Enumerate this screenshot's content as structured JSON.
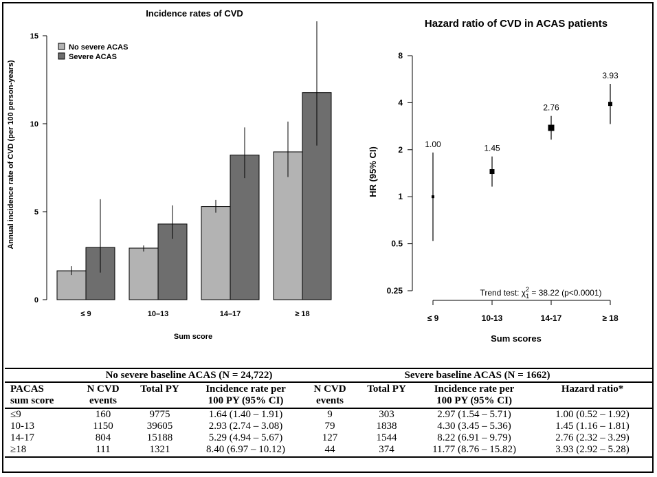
{
  "chart_data": [
    {
      "type": "bar",
      "title": "Incidence rates of CVD",
      "xlabel": "Sum score",
      "ylabel": "Annual incidence rate of CVD (per 100 person-years)",
      "categories": [
        "≤ 9",
        "10–13",
        "14–17",
        "≥ 18"
      ],
      "ylim": [
        0,
        15
      ],
      "yticks": [
        0,
        5,
        10,
        15
      ],
      "legend_position": "top-left",
      "grid": false,
      "series": [
        {
          "name": "No severe ACAS",
          "color": "#b3b3b3",
          "values": [
            1.64,
            2.93,
            5.29,
            8.4
          ],
          "ci_low": [
            1.4,
            2.74,
            4.94,
            6.97
          ],
          "ci_high": [
            1.91,
            3.08,
            5.67,
            10.12
          ]
        },
        {
          "name": "Severe ACAS",
          "color": "#6e6e6e",
          "values": [
            2.97,
            4.3,
            8.22,
            11.77
          ],
          "ci_low": [
            1.54,
            3.45,
            6.91,
            8.76
          ],
          "ci_high": [
            5.71,
            5.36,
            9.79,
            15.82
          ]
        }
      ]
    },
    {
      "type": "scatter",
      "title": "Hazard ratio of CVD in ACAS patients",
      "xlabel": "Sum scores",
      "ylabel": "HR (95% CI)",
      "y_scale": "log",
      "categories": [
        "≤ 9",
        "10-13",
        "14-17",
        "≥ 18"
      ],
      "ylim": [
        0.25,
        8
      ],
      "yticks": [
        0.25,
        0.5,
        1,
        2,
        4,
        8
      ],
      "ytick_labels": [
        "0.25",
        "0.5",
        "1",
        "2",
        "4",
        "8"
      ],
      "values": [
        1.0,
        1.45,
        2.76,
        3.93
      ],
      "value_labels": [
        "1.00",
        "1.45",
        "2.76",
        "3.93"
      ],
      "ci_low": [
        0.52,
        1.16,
        2.32,
        2.92
      ],
      "ci_high": [
        1.92,
        1.81,
        3.29,
        5.28
      ],
      "annotation": {
        "prefix": "Trend test: χ",
        "sup": "2",
        "sub": "1",
        "suffix": " = 38.22 (p<0.0001)"
      }
    }
  ],
  "table": {
    "group_no": "No severe baseline ACAS (N = 24,722)",
    "group_sev": "Severe baseline ACAS (N = 1662)",
    "headers": [
      [
        "PACAS",
        "sum score"
      ],
      [
        "N CVD",
        "events"
      ],
      [
        "Total PY"
      ],
      [
        "Incidence rate per",
        "100 PY (95% CI)"
      ],
      [
        "N CVD",
        "events"
      ],
      [
        "Total PY"
      ],
      [
        "Incidence rate per",
        "100 PY (95% CI)"
      ],
      [
        "Hazard ratio*"
      ]
    ],
    "rows": [
      [
        "≤9",
        "160",
        "9775",
        "1.64 (1.40 – 1.91)",
        "9",
        "303",
        "2.97 (1.54 – 5.71)",
        "1.00 (0.52 – 1.92)"
      ],
      [
        "10-13",
        "1150",
        "39605",
        "2.93 (2.74 – 3.08)",
        "79",
        "1838",
        "4.30 (3.45 – 5.36)",
        "1.45 (1.16 – 1.81)"
      ],
      [
        "14-17",
        "804",
        "15188",
        "5.29 (4.94 – 5.67)",
        "127",
        "1544",
        "8.22 (6.91 – 9.79)",
        "2.76 (2.32 – 3.29)"
      ],
      [
        "≥18",
        "111",
        "1321",
        "8.40 (6.97 – 10.12)",
        "44",
        "374",
        "11.77 (8.76 – 15.82)",
        "3.93 (2.92 – 5.28)"
      ]
    ]
  }
}
